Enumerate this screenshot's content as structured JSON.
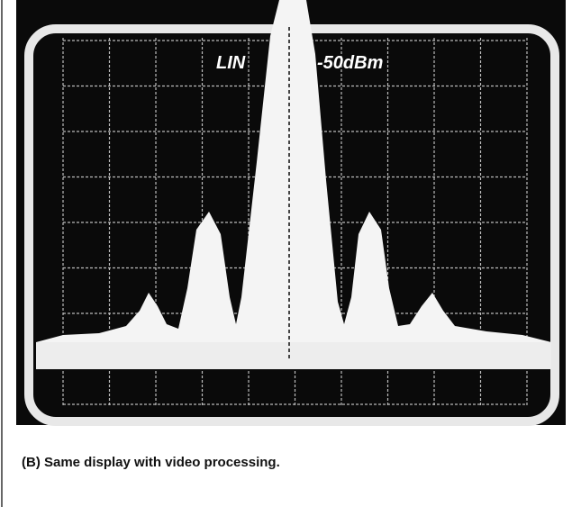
{
  "figure": {
    "screen_labels": [
      "LIN",
      "-50dBm"
    ]
  },
  "caption": "(B) Same display with video processing."
}
